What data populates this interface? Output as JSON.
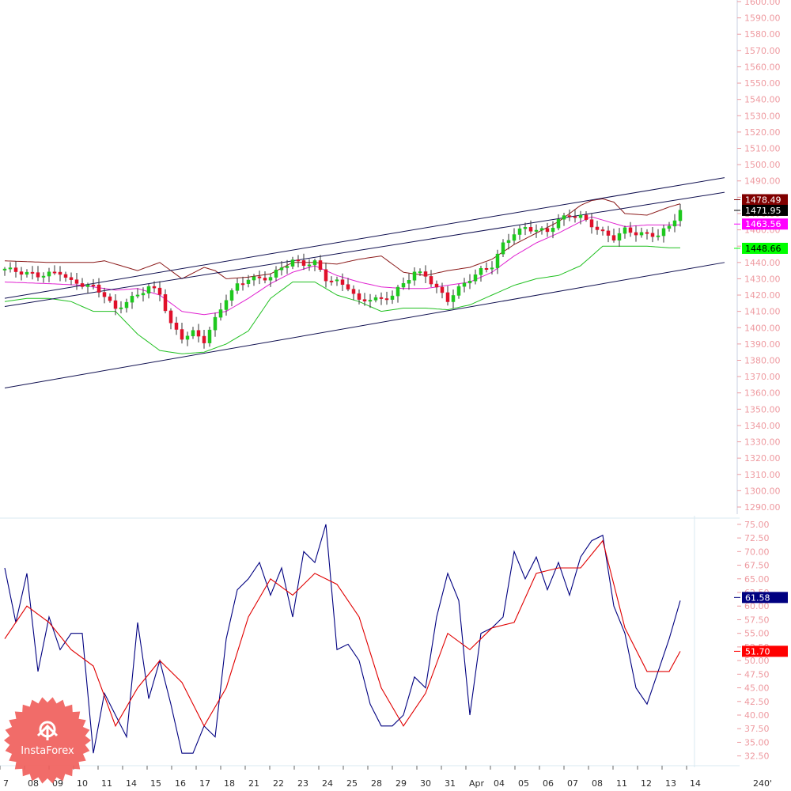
{
  "brand": {
    "name": "InstaForex",
    "color": "#f0605c"
  },
  "chart_data": [
    {
      "type": "candlestick",
      "panel": "price",
      "ylim": [
        1290,
        1600
      ],
      "yticks": [
        1290,
        1300,
        1310,
        1320,
        1330,
        1340,
        1350,
        1360,
        1370,
        1380,
        1390,
        1400,
        1410,
        1420,
        1430,
        1440,
        1450,
        1460,
        1470,
        1480,
        1490,
        1500,
        1510,
        1520,
        1530,
        1540,
        1550,
        1560,
        1570,
        1580,
        1590,
        1600
      ],
      "ytick_labels": [
        "1290.00",
        "1300.00",
        "1310.00",
        "1320.00",
        "1330.00",
        "1340.00",
        "1350.00",
        "1360.00",
        "1370.00",
        "1380.00",
        "1390.00",
        "1400.00",
        "1410.00",
        "1420.00",
        "1430.00",
        "1440.00",
        "1450.00",
        "1460.00",
        "1470.00",
        "1480.00",
        "1490.00",
        "1500.00",
        "1510.00",
        "1520.00",
        "1530.00",
        "1540.00",
        "1550.00",
        "1560.00",
        "1570.00",
        "1580.00",
        "1590.00",
        "1600.00"
      ],
      "x_labels": [
        "7",
        "08",
        "09",
        "10",
        "11",
        "14",
        "15",
        "16",
        "17",
        "18",
        "21",
        "22",
        "23",
        "24",
        "25",
        "28",
        "29",
        "30",
        "31",
        "Apr",
        "04",
        "05",
        "06",
        "07",
        "08",
        "11",
        "12",
        "13",
        "14"
      ],
      "timeframe": "240'",
      "colors": {
        "up": "#1ec81e",
        "down": "#e0112b",
        "upper_band": "#8b1a1a",
        "middle_band": "#e020d0",
        "lower_band": "#20c020",
        "channel": "#101050"
      },
      "price_path": [
        [
          0,
          1436
        ],
        [
          3,
          1432
        ],
        [
          5,
          1434
        ],
        [
          6,
          1428
        ],
        [
          8,
          1425
        ],
        [
          9,
          1420
        ],
        [
          10,
          1411
        ],
        [
          11,
          1416
        ],
        [
          12,
          1420
        ],
        [
          13,
          1425
        ],
        [
          14,
          1421
        ],
        [
          15,
          1402
        ],
        [
          16,
          1394
        ],
        [
          17,
          1397
        ],
        [
          18,
          1392
        ],
        [
          19,
          1405
        ],
        [
          20,
          1418
        ],
        [
          21,
          1426
        ],
        [
          22,
          1430
        ],
        [
          23,
          1430
        ],
        [
          24,
          1431
        ],
        [
          25,
          1437
        ],
        [
          26,
          1441
        ],
        [
          27,
          1439
        ],
        [
          28,
          1440
        ],
        [
          29,
          1430
        ],
        [
          30,
          1428
        ],
        [
          31,
          1425
        ],
        [
          32,
          1416
        ],
        [
          33,
          1418
        ],
        [
          34,
          1417
        ],
        [
          35,
          1420
        ],
        [
          36,
          1427
        ],
        [
          37,
          1434
        ],
        [
          38,
          1432
        ],
        [
          39,
          1424
        ],
        [
          40,
          1417
        ],
        [
          41,
          1424
        ],
        [
          42,
          1430
        ],
        [
          43,
          1435
        ],
        [
          44,
          1438
        ],
        [
          45,
          1451
        ],
        [
          46,
          1458
        ],
        [
          47,
          1461
        ],
        [
          48,
          1460
        ],
        [
          49,
          1459
        ],
        [
          50,
          1466
        ],
        [
          51,
          1469
        ],
        [
          52,
          1468
        ],
        [
          53,
          1463
        ],
        [
          54,
          1458
        ],
        [
          55,
          1455
        ],
        [
          56,
          1460
        ],
        [
          57,
          1458
        ],
        [
          58,
          1457
        ],
        [
          59,
          1457
        ],
        [
          60,
          1462
        ],
        [
          61,
          1472
        ]
      ],
      "bands": {
        "upper": [
          [
            0,
            1441
          ],
          [
            4,
            1440
          ],
          [
            8,
            1440
          ],
          [
            9,
            1441
          ],
          [
            12,
            1435
          ],
          [
            14,
            1440
          ],
          [
            16,
            1430
          ],
          [
            18,
            1437
          ],
          [
            19,
            1435
          ],
          [
            20,
            1430
          ],
          [
            22,
            1431
          ],
          [
            24,
            1433
          ],
          [
            26,
            1440
          ],
          [
            28,
            1440
          ],
          [
            30,
            1439
          ],
          [
            32,
            1442
          ],
          [
            34,
            1444
          ],
          [
            36,
            1434
          ],
          [
            38,
            1432
          ],
          [
            40,
            1435
          ],
          [
            42,
            1437
          ],
          [
            44,
            1442
          ],
          [
            46,
            1451
          ],
          [
            48,
            1458
          ],
          [
            50,
            1465
          ],
          [
            52,
            1475
          ],
          [
            53,
            1478
          ],
          [
            54,
            1479
          ],
          [
            55,
            1477
          ],
          [
            56,
            1470
          ],
          [
            58,
            1469
          ],
          [
            60,
            1474
          ],
          [
            61,
            1476
          ]
        ],
        "middle": [
          [
            0,
            1428
          ],
          [
            4,
            1427
          ],
          [
            7,
            1426
          ],
          [
            10,
            1423
          ],
          [
            12,
            1424
          ],
          [
            14,
            1420
          ],
          [
            16,
            1410
          ],
          [
            18,
            1408
          ],
          [
            20,
            1410
          ],
          [
            22,
            1418
          ],
          [
            24,
            1427
          ],
          [
            26,
            1434
          ],
          [
            28,
            1438
          ],
          [
            30,
            1432
          ],
          [
            32,
            1428
          ],
          [
            34,
            1425
          ],
          [
            36,
            1424
          ],
          [
            38,
            1424
          ],
          [
            40,
            1426
          ],
          [
            42,
            1428
          ],
          [
            44,
            1434
          ],
          [
            46,
            1444
          ],
          [
            48,
            1452
          ],
          [
            50,
            1458
          ],
          [
            52,
            1465
          ],
          [
            53,
            1468
          ],
          [
            54,
            1466
          ],
          [
            56,
            1462
          ],
          [
            58,
            1463
          ],
          [
            60,
            1463
          ],
          [
            61,
            1463
          ]
        ],
        "lower": [
          [
            0,
            1416
          ],
          [
            2,
            1418
          ],
          [
            4,
            1418
          ],
          [
            6,
            1416
          ],
          [
            8,
            1410
          ],
          [
            10,
            1410
          ],
          [
            12,
            1396
          ],
          [
            14,
            1386
          ],
          [
            16,
            1384
          ],
          [
            18,
            1385
          ],
          [
            20,
            1390
          ],
          [
            22,
            1398
          ],
          [
            24,
            1418
          ],
          [
            26,
            1428
          ],
          [
            28,
            1428
          ],
          [
            30,
            1420
          ],
          [
            32,
            1416
          ],
          [
            34,
            1410
          ],
          [
            36,
            1412
          ],
          [
            38,
            1412
          ],
          [
            40,
            1411
          ],
          [
            42,
            1414
          ],
          [
            44,
            1420
          ],
          [
            46,
            1426
          ],
          [
            48,
            1430
          ],
          [
            50,
            1432
          ],
          [
            52,
            1438
          ],
          [
            54,
            1450
          ],
          [
            56,
            1450
          ],
          [
            58,
            1450
          ],
          [
            60,
            1449
          ],
          [
            61,
            1449
          ]
        ]
      },
      "channel_lines": [
        {
          "from": [
            0,
            1418
          ],
          "to": [
            65,
            1492
          ]
        },
        {
          "from": [
            0,
            1413
          ],
          "to": [
            65,
            1483
          ]
        },
        {
          "from": [
            0,
            1363
          ],
          "to": [
            65,
            1440
          ]
        }
      ],
      "price_tags": [
        {
          "label": "1478.49",
          "value": 1478.49,
          "bg": "#800000",
          "fg": "#ffffff"
        },
        {
          "label": "1471.95",
          "value": 1471.95,
          "bg": "#000000",
          "fg": "#ffffff"
        },
        {
          "label": "1463.56",
          "value": 1463.56,
          "bg": "#ff00ff",
          "fg": "#ffffff"
        },
        {
          "label": "1448.66",
          "value": 1448.66,
          "bg": "#00ff00",
          "fg": "#000000"
        }
      ]
    },
    {
      "type": "line",
      "panel": "oscillator",
      "ylim": [
        31,
        76
      ],
      "yticks": [
        32.5,
        35,
        37.5,
        40,
        42.5,
        45,
        47.5,
        50,
        52.5,
        55,
        57.5,
        60,
        62.5,
        65,
        67.5,
        70,
        72.5,
        75
      ],
      "ytick_labels": [
        "32.50",
        "35.00",
        "37.50",
        "40.00",
        "42.50",
        "45.00",
        "47.50",
        "50.00",
        "52.50",
        "55.00",
        "57.50",
        "60.00",
        "62.50",
        "65.00",
        "67.50",
        "70.00",
        "72.50",
        "75.00"
      ],
      "series": [
        {
          "color": "#000080",
          "values": [
            [
              0,
              67
            ],
            [
              1,
              57
            ],
            [
              2,
              66
            ],
            [
              3,
              48
            ],
            [
              4,
              58
            ],
            [
              5,
              52
            ],
            [
              6,
              55
            ],
            [
              7,
              55
            ],
            [
              8,
              33
            ],
            [
              9,
              44
            ],
            [
              10,
              40
            ],
            [
              11,
              36
            ],
            [
              12,
              57
            ],
            [
              13,
              43
            ],
            [
              14,
              50
            ],
            [
              15,
              42
            ],
            [
              16,
              33
            ],
            [
              17,
              33
            ],
            [
              18,
              38
            ],
            [
              19,
              36
            ],
            [
              20,
              54
            ],
            [
              21,
              63
            ],
            [
              22,
              65
            ],
            [
              23,
              68
            ],
            [
              24,
              62
            ],
            [
              25,
              67
            ],
            [
              26,
              58
            ],
            [
              27,
              70
            ],
            [
              28,
              68
            ],
            [
              29,
              75
            ],
            [
              30,
              52
            ],
            [
              31,
              53
            ],
            [
              32,
              50
            ],
            [
              33,
              42
            ],
            [
              34,
              38
            ],
            [
              35,
              38
            ],
            [
              36,
              40
            ],
            [
              37,
              47
            ],
            [
              38,
              45
            ],
            [
              39,
              58
            ],
            [
              40,
              66
            ],
            [
              41,
              61
            ],
            [
              42,
              40
            ],
            [
              43,
              55
            ],
            [
              44,
              56
            ],
            [
              45,
              58
            ],
            [
              46,
              70
            ],
            [
              47,
              65
            ],
            [
              48,
              69
            ],
            [
              49,
              63
            ],
            [
              50,
              68
            ],
            [
              51,
              62
            ],
            [
              52,
              69
            ],
            [
              53,
              72
            ],
            [
              54,
              73
            ],
            [
              55,
              60
            ],
            [
              56,
              55
            ],
            [
              57,
              45
            ],
            [
              58,
              42
            ],
            [
              59,
              48
            ],
            [
              60,
              54
            ],
            [
              61,
              61
            ]
          ]
        },
        {
          "color": "#e00000",
          "values": [
            [
              0,
              54
            ],
            [
              2,
              60
            ],
            [
              4,
              57
            ],
            [
              6,
              52
            ],
            [
              8,
              49
            ],
            [
              10,
              38
            ],
            [
              12,
              45
            ],
            [
              14,
              50
            ],
            [
              16,
              46
            ],
            [
              18,
              38
            ],
            [
              20,
              45
            ],
            [
              22,
              58
            ],
            [
              24,
              65
            ],
            [
              26,
              62
            ],
            [
              28,
              66
            ],
            [
              30,
              64
            ],
            [
              32,
              58
            ],
            [
              34,
              45
            ],
            [
              36,
              38
            ],
            [
              38,
              44
            ],
            [
              40,
              55
            ],
            [
              42,
              52
            ],
            [
              44,
              56
            ],
            [
              46,
              57
            ],
            [
              48,
              66
            ],
            [
              50,
              67
            ],
            [
              52,
              67
            ],
            [
              54,
              72
            ],
            [
              56,
              56
            ],
            [
              58,
              48
            ],
            [
              60,
              48
            ],
            [
              61,
              51.7
            ]
          ]
        }
      ],
      "value_tags": [
        {
          "label": "61.58",
          "value": 61.58,
          "bg": "#000080",
          "fg": "#ffffff"
        },
        {
          "label": "51.70",
          "value": 51.7,
          "bg": "#ff0000",
          "fg": "#ffffff"
        }
      ]
    }
  ]
}
